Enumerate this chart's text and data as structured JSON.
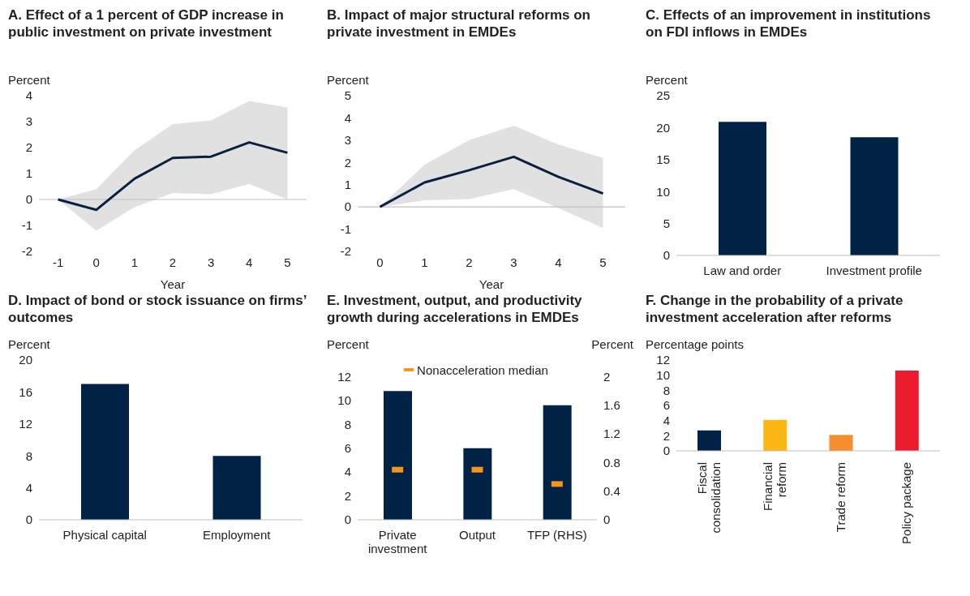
{
  "chart_data": [
    {
      "type": "line",
      "title": "A. Effect of a 1 percent of GDP increase in public investment on private investment",
      "ylabel": "Percent",
      "xlabel": "Year",
      "x": [
        -1,
        0,
        1,
        2,
        3,
        4,
        5
      ],
      "xlim": [
        -1.5,
        5.5
      ],
      "xticks": [
        -1,
        0,
        1,
        2,
        3,
        4,
        5
      ],
      "ylim": [
        -2,
        4
      ],
      "yticks": [
        -2,
        -1,
        0,
        1,
        2,
        3,
        4
      ],
      "series": [
        {
          "color": "#0b1f3f",
          "values": [
            0,
            -0.4,
            0.8,
            1.6,
            1.65,
            2.2,
            1.8
          ],
          "lower": [
            0,
            -1.2,
            -0.3,
            0.25,
            0.2,
            0.6,
            0
          ],
          "upper": [
            0,
            0.4,
            1.9,
            2.9,
            3.05,
            3.8,
            3.55
          ]
        }
      ]
    },
    {
      "type": "line",
      "title": "B. Impact of major structural reforms on private investment in EMDEs",
      "ylabel": "Percent",
      "xlabel": "Year",
      "x": [
        0,
        1,
        2,
        3,
        4,
        5
      ],
      "xlim": [
        -0.5,
        5.5
      ],
      "xticks": [
        0,
        1,
        2,
        3,
        4,
        5
      ],
      "ylim": [
        -2,
        5
      ],
      "yticks": [
        -2,
        -1,
        0,
        1,
        2,
        3,
        4,
        5
      ],
      "series": [
        {
          "color": "#0b1f3f",
          "values": [
            0,
            1.1,
            1.65,
            2.25,
            1.35,
            0.6
          ],
          "lower": [
            0,
            0.3,
            0.35,
            0.8,
            -0.05,
            -0.95
          ],
          "upper": [
            0,
            1.9,
            3.0,
            3.65,
            2.8,
            2.2
          ]
        }
      ]
    },
    {
      "type": "bar",
      "title": "C. Effects of an improvement in institutions on FDI inflows in EMDEs",
      "ylabel": "Percent",
      "categories": [
        "Law and order",
        "Investment profile"
      ],
      "ylim": [
        0,
        25
      ],
      "yticks": [
        0,
        5,
        10,
        15,
        20,
        25
      ],
      "series": [
        {
          "color": "#002345",
          "values": [
            20.9,
            18.5
          ]
        }
      ]
    },
    {
      "type": "bar",
      "title": "D. Impact of bond or stock issuance on firms’ outcomes",
      "ylabel": "Percent",
      "categories": [
        "Physical capital",
        "Employment"
      ],
      "ylim": [
        0,
        20
      ],
      "yticks": [
        0,
        4,
        8,
        12,
        16,
        20
      ],
      "series": [
        {
          "color": "#002345",
          "values": [
            17,
            8
          ]
        }
      ]
    },
    {
      "type": "bar",
      "title": "E. Investment, output, and productivity growth during accelerations in EMDEs",
      "ylabel": "Percent",
      "y2label": "Percent",
      "categories": [
        "Private investment",
        "Output",
        "TFP (RHS)"
      ],
      "ylim": [
        0,
        12
      ],
      "yticks": [
        0,
        2,
        4,
        6,
        8,
        10,
        12
      ],
      "y2lim": [
        0,
        2
      ],
      "y2ticks": [
        0,
        0.4,
        0.8,
        1.2,
        1.6,
        2
      ],
      "legend": "top",
      "series": [
        {
          "color": "#002345",
          "values": [
            10.8,
            6,
            null
          ]
        },
        {
          "color": "#002345",
          "axis": "y2",
          "values": [
            null,
            null,
            1.6
          ]
        },
        {
          "type": "scatter",
          "name": "Nonacceleration median",
          "color": "#f7941d",
          "values": [
            4.2,
            4.2,
            null
          ]
        },
        {
          "type": "scatter",
          "color": "#f7941d",
          "axis": "y2",
          "values": [
            null,
            null,
            0.5
          ]
        }
      ]
    },
    {
      "type": "bar",
      "title": "F. Change in the probability of a private investment acceleration after reforms",
      "ylabel": "Percentage points",
      "categories": [
        "Fiscal consolidation",
        "Financial reform",
        "Trade reform",
        "Policy package"
      ],
      "ylim": [
        0,
        12
      ],
      "yticks": [
        0,
        2,
        4,
        6,
        8,
        10,
        12
      ],
      "series": [
        {
          "values": [
            2.7,
            4.1,
            2.1,
            10.6
          ],
          "colors": [
            "#002345",
            "#fdb714",
            "#f68d2e",
            "#eb1c2d"
          ]
        }
      ]
    }
  ]
}
